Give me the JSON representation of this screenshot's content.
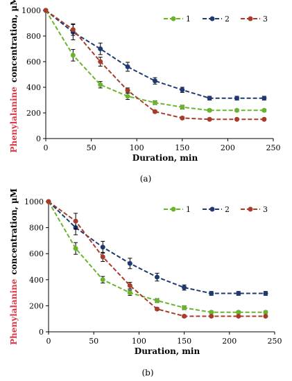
{
  "colors": {
    "series_1": "#6ab42d",
    "series_2": "#1f3a73",
    "series_3": "#a83c2a",
    "highlight": "#d93b4a",
    "error_bar": "#000000"
  },
  "chart_data": [
    {
      "type": "line",
      "panel_label": "(a)",
      "ylabel_part1": "Phenylalanine",
      "ylabel_part2": "concentration, µM",
      "xlabel": "Duration, min",
      "xlim": [
        0,
        250
      ],
      "ylim": [
        0,
        1000
      ],
      "x_ticks": [
        0,
        50,
        100,
        150,
        200,
        250
      ],
      "y_ticks": [
        0,
        200,
        400,
        600,
        800,
        1000
      ],
      "grid": false,
      "legend_position": "top-right",
      "series": [
        {
          "name": "1",
          "x": [
            0,
            30,
            60,
            90,
            120,
            150,
            180,
            210,
            240
          ],
          "y": [
            1000,
            650,
            420,
            330,
            280,
            245,
            220,
            220,
            220
          ],
          "err": [
            0,
            45,
            25,
            25,
            15,
            15,
            10,
            10,
            10
          ]
        },
        {
          "name": "2",
          "x": [
            0,
            30,
            60,
            90,
            120,
            150,
            180,
            210,
            240
          ],
          "y": [
            1000,
            830,
            700,
            560,
            450,
            380,
            315,
            315,
            315
          ],
          "err": [
            0,
            60,
            45,
            35,
            25,
            20,
            15,
            15,
            15
          ]
        },
        {
          "name": "3",
          "x": [
            0,
            30,
            60,
            90,
            120,
            150,
            180,
            210,
            240
          ],
          "y": [
            1000,
            850,
            600,
            375,
            210,
            160,
            150,
            150,
            150
          ],
          "err": [
            0,
            45,
            35,
            20,
            10,
            10,
            5,
            5,
            5
          ]
        }
      ]
    },
    {
      "type": "line",
      "panel_label": "(b)",
      "ylabel_part1": "Phenylalanine",
      "ylabel_part2": "concentration, µM",
      "xlabel": "Duration, min",
      "xlim": [
        0,
        250
      ],
      "ylim": [
        0,
        1000
      ],
      "x_ticks": [
        0,
        50,
        100,
        150,
        200,
        250
      ],
      "y_ticks": [
        0,
        200,
        400,
        600,
        800,
        1000
      ],
      "grid": false,
      "legend_position": "top-right",
      "series": [
        {
          "name": "1",
          "x": [
            0,
            30,
            60,
            90,
            120,
            150,
            180,
            210,
            240
          ],
          "y": [
            1000,
            640,
            400,
            300,
            240,
            185,
            150,
            150,
            150
          ],
          "err": [
            0,
            45,
            25,
            20,
            15,
            15,
            10,
            10,
            10
          ]
        },
        {
          "name": "2",
          "x": [
            0,
            30,
            60,
            90,
            120,
            150,
            180,
            210,
            240
          ],
          "y": [
            1000,
            800,
            650,
            525,
            420,
            340,
            295,
            295,
            295
          ],
          "err": [
            0,
            55,
            45,
            40,
            30,
            20,
            15,
            15,
            15
          ]
        },
        {
          "name": "3",
          "x": [
            0,
            30,
            60,
            90,
            120,
            150,
            180,
            210,
            240
          ],
          "y": [
            1000,
            850,
            575,
            355,
            175,
            120,
            120,
            120,
            120
          ],
          "err": [
            0,
            60,
            35,
            25,
            10,
            10,
            5,
            5,
            5
          ]
        }
      ]
    }
  ]
}
